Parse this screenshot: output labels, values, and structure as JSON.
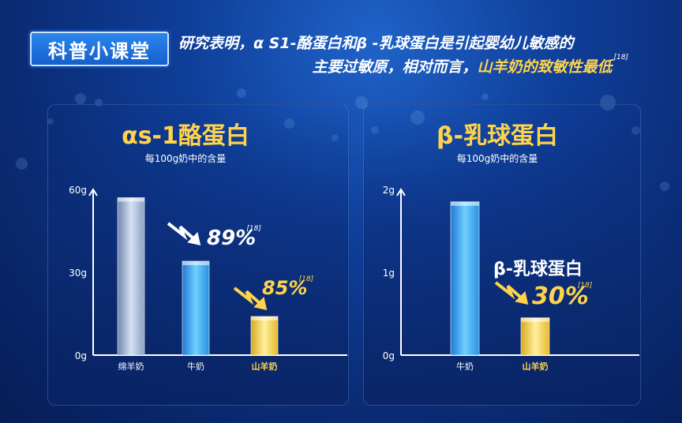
{
  "header": {
    "badge": "科普小课堂",
    "line1": "研究表明，α S1-酪蛋白和β -乳球蛋白是引起婴幼儿敏感的",
    "line2_prefix": "主要过敏原，相对而言，",
    "line2_highlight": "山羊奶的致敏性最低",
    "ref": "[18]"
  },
  "colors": {
    "highlight": "#ffd34a",
    "blue_bar": "#3aa9ee",
    "gray_bar": "#8fa3c4",
    "gold_bar": "#f2cf45"
  },
  "chart_data": [
    {
      "type": "bar",
      "title": "αs-1酪蛋白",
      "subtitle": "每100g奶中的含量",
      "categories": [
        "绵羊奶",
        "牛奶",
        "山羊奶"
      ],
      "values": [
        57,
        34,
        14
      ],
      "yticks": [
        "60g",
        "30g",
        "0g"
      ],
      "ylim": [
        0,
        60
      ],
      "annotations": [
        {
          "category": "牛奶",
          "text": "89%",
          "ref": "[18]",
          "color": "#ffffff"
        },
        {
          "category": "山羊奶",
          "text": "85%",
          "ref": "[18]",
          "color": "#ffd34a"
        }
      ]
    },
    {
      "type": "bar",
      "title": "β-乳球蛋白",
      "subtitle": "每100g奶中的含量",
      "categories": [
        "牛奶",
        "山羊奶"
      ],
      "values": [
        1.85,
        0.45
      ],
      "yticks": [
        "2g",
        "1g",
        "0g"
      ],
      "ylim": [
        0,
        2
      ],
      "annotations": [
        {
          "category": "山羊奶",
          "label": "β-乳球蛋白",
          "text": "30%",
          "ref": "[18]",
          "color": "#ffd34a"
        }
      ]
    }
  ]
}
